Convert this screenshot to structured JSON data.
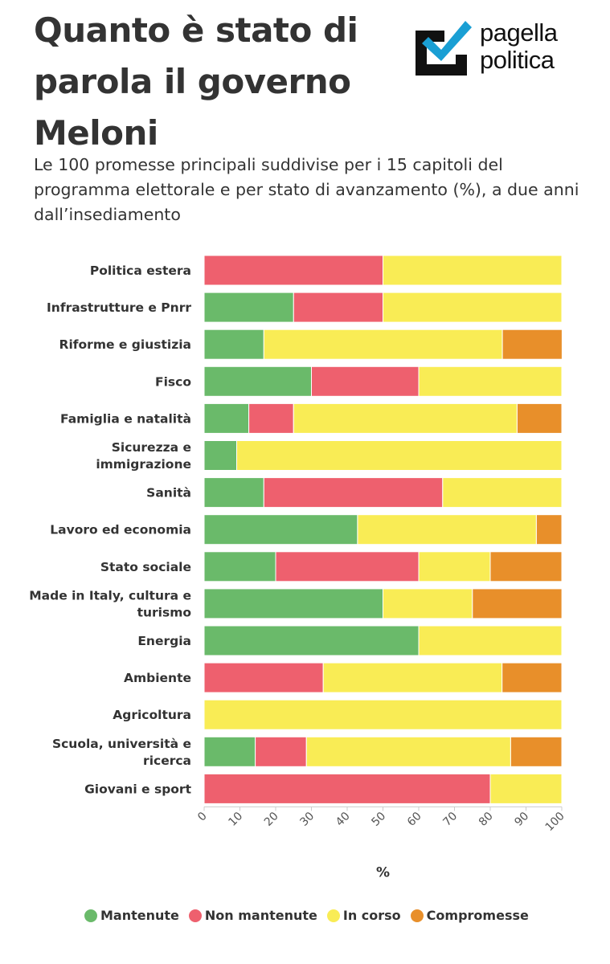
{
  "header": {
    "title": "Quanto è stato di parola il governo Meloni",
    "subtitle": "Le 100 promesse principali suddivise per i 15 capitoli del programma elettorale e per stato di avanzamento (%), a due anni dall’insediamento",
    "logo_line1": "pagella",
    "logo_line2": "politica"
  },
  "colors": {
    "Mantenute": "#6aba6a",
    "Non mantenute": "#ee606e",
    "In corso": "#f9ec55",
    "Compromesse": "#e88f2a",
    "logo_dark": "#111111",
    "logo_accent": "#1a9fd4"
  },
  "legend": [
    {
      "label": "Mantenute",
      "color": "#6aba6a"
    },
    {
      "label": "Non mantenute",
      "color": "#ee606e"
    },
    {
      "label": "In corso",
      "color": "#f9ec55"
    },
    {
      "label": "Compromesse",
      "color": "#e88f2a"
    }
  ],
  "chart_data": {
    "type": "bar",
    "orientation": "horizontal",
    "stacked": true,
    "categories": [
      "Politica estera",
      "Infrastrutture e Pnrr",
      "Riforme e giustizia",
      "Fisco",
      "Famiglia e natalità",
      "Sicurezza e immigrazione",
      "Sanità",
      "Lavoro ed economia",
      "Stato sociale",
      "Made in Italy, cultura e turismo",
      "Energia",
      "Ambiente",
      "Agricoltura",
      "Scuola, università e ricerca",
      "Giovani e sport"
    ],
    "series": [
      {
        "name": "Mantenute",
        "values": [
          0,
          25,
          16.7,
          30,
          12.5,
          9.1,
          16.7,
          42.9,
          20,
          50,
          60,
          0,
          0,
          14.3,
          0
        ]
      },
      {
        "name": "Non mantenute",
        "values": [
          50,
          25,
          0,
          30,
          12.5,
          0,
          50,
          0,
          40,
          0,
          0,
          33.3,
          0,
          14.3,
          80
        ]
      },
      {
        "name": "In corso",
        "values": [
          50,
          50,
          66.7,
          40,
          62.5,
          90.9,
          33.3,
          50,
          20,
          25,
          40,
          50,
          100,
          57.1,
          20
        ]
      },
      {
        "name": "Compromesse",
        "values": [
          0,
          0,
          16.7,
          0,
          12.5,
          0,
          0,
          7.1,
          20,
          25,
          0,
          16.7,
          0,
          14.3,
          0
        ]
      }
    ],
    "xlabel": "%",
    "ylabel": "",
    "xlim": [
      0,
      100
    ],
    "xticks": [
      0,
      10,
      20,
      30,
      40,
      50,
      60,
      70,
      80,
      90,
      100
    ],
    "grid": false,
    "legend_position": "bottom"
  }
}
